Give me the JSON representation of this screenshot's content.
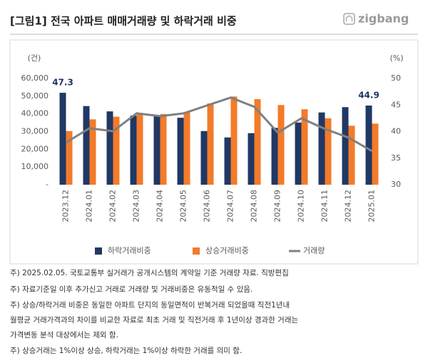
{
  "title": "[그림1] 전국 아파트 매매거래량 및 하락거래 비중",
  "logo": "zigbang",
  "chart_data": {
    "type": "bar",
    "y_unit": "(건)",
    "y2_unit": "(%)",
    "categories": [
      "2023.12",
      "2024.01",
      "2024.02",
      "2024.03",
      "2024.04",
      "2024.05",
      "2024.06",
      "2024.07",
      "2024.08",
      "2024.09",
      "2024.10",
      "2024.11",
      "2024.12",
      "2025.01"
    ],
    "series": [
      {
        "name": "하락거래비중",
        "color": "#203864",
        "type": "bar",
        "axis": "y2",
        "values": [
          47.3,
          44.8,
          43.8,
          43.0,
          42.9,
          42.6,
          40.1,
          38.9,
          39.7,
          40.7,
          41.7,
          43.6,
          44.6,
          44.9
        ]
      },
      {
        "name": "상승거래비중",
        "color": "#f37b2a",
        "type": "bar",
        "axis": "y2",
        "values": [
          40.1,
          42.3,
          42.8,
          43.4,
          43.3,
          43.6,
          45.3,
          46.6,
          46.1,
          45.0,
          44.2,
          42.5,
          41.1,
          41.5
        ]
      },
      {
        "name": "거래량",
        "color": "#808080",
        "type": "line",
        "values": [
          23800,
          31900,
          30200,
          40300,
          38700,
          40300,
          44800,
          49200,
          44000,
          29400,
          37500,
          31500,
          26600,
          19000
        ]
      }
    ],
    "ylim": [
      0,
      60000
    ],
    "yticks": [
      {
        "value": 0,
        "label": "-"
      },
      {
        "value": 10000,
        "label": "10,000"
      },
      {
        "value": 20000,
        "label": "20,000"
      },
      {
        "value": 30000,
        "label": "30,000"
      },
      {
        "value": 40000,
        "label": "40,000"
      },
      {
        "value": 50000,
        "label": "50,000"
      },
      {
        "value": 60000,
        "label": "60,000"
      }
    ],
    "y2lim": [
      30,
      50
    ],
    "y2ticks": [
      30,
      35,
      40,
      45,
      50
    ],
    "grid": false
  },
  "notes": [
    "주) 2025.02.05. 국토교통부 실거래가 공개시스템의 계약일 기준 거래량  자료. 직방편집",
    "주) 자료기준일 이후 추가신고 거래로 거래량 및 거래비중은 유동적일 수 있음.",
    "주) 상승/하락거래 비중은 동일한 아파트 단지의 동일면적이 반복거래 되었을때 직전1년내",
    "월평균 거래가격과의 차이를 비교한 자료로 최초 거래 및 직전거래 후 1년이상 경과한 거래는",
    "가격변동 분석 대상에서는 제외 함.",
    "주) 상승거래는 1%이상 상승, 하락거래는 1%이상 하락한 거래를 의미 함."
  ]
}
